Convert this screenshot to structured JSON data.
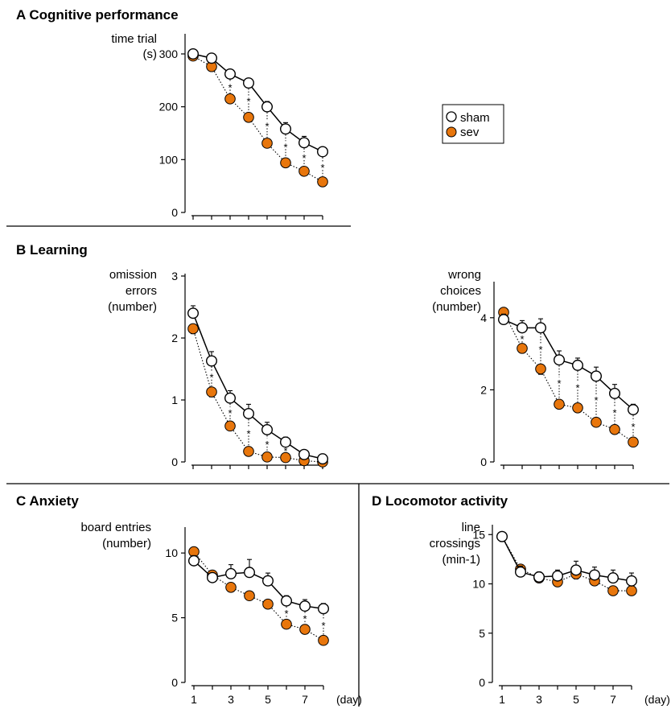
{
  "legend": {
    "sham": "sham",
    "sev": "sev"
  },
  "colors": {
    "sham_fill": "#ffffff",
    "sev_fill": "#e8760c",
    "line": "#000000"
  },
  "chart_data": [
    {
      "id": "A",
      "type": "line",
      "panel_title": "A Cognitive performance",
      "ylabel_lines": [
        "time trial",
        "(s)"
      ],
      "ylim": [
        0,
        300
      ],
      "yticks": [
        0,
        100,
        200,
        300
      ],
      "x": [
        1,
        2,
        3,
        4,
        5,
        6,
        7,
        8
      ],
      "xtick_labels": [],
      "xunit": "",
      "series": [
        {
          "name": "sham",
          "values": [
            300,
            292,
            262,
            245,
            200,
            158,
            132,
            115
          ],
          "errors": [
            3,
            4,
            5,
            8,
            10,
            12,
            12,
            8
          ]
        },
        {
          "name": "sev",
          "values": [
            296,
            276,
            215,
            180,
            131,
            94,
            78,
            58
          ],
          "errors": [
            3,
            4,
            5,
            5,
            5,
            5,
            5,
            4
          ]
        }
      ],
      "significant": [
        3,
        4,
        5,
        6,
        7,
        8
      ]
    },
    {
      "id": "B1",
      "type": "line",
      "panel_title": "B Learning",
      "ylabel_lines": [
        "omission",
        "errors",
        "(number)"
      ],
      "ylim": [
        0,
        3
      ],
      "yticks": [
        0,
        1,
        2,
        3
      ],
      "x": [
        1,
        2,
        3,
        4,
        5,
        6,
        7,
        8
      ],
      "xtick_labels": [],
      "xunit": "",
      "series": [
        {
          "name": "sham",
          "values": [
            2.4,
            1.63,
            1.03,
            0.78,
            0.52,
            0.32,
            0.12,
            0.05
          ],
          "errors": [
            0.12,
            0.15,
            0.12,
            0.15,
            0.12,
            0.08,
            0.05,
            0.03
          ]
        },
        {
          "name": "sev",
          "values": [
            2.15,
            1.13,
            0.58,
            0.17,
            0.08,
            0.07,
            0.02,
            0.0
          ],
          "errors": [
            0.08,
            0.08,
            0.06,
            0.04,
            0.03,
            0.03,
            0.02,
            0.01
          ]
        }
      ],
      "significant": [
        2,
        3,
        4,
        5,
        6
      ]
    },
    {
      "id": "B2",
      "type": "line",
      "panel_title": "",
      "ylabel_lines": [
        "wrong",
        "choices",
        "(number)"
      ],
      "ylim": [
        0,
        5
      ],
      "yticks": [
        0,
        2,
        4
      ],
      "x": [
        1,
        2,
        3,
        4,
        5,
        6,
        7,
        8
      ],
      "xtick_labels": [],
      "xunit": "",
      "series": [
        {
          "name": "sham",
          "values": [
            3.95,
            3.72,
            3.72,
            2.83,
            2.68,
            2.38,
            1.9,
            1.45
          ],
          "errors": [
            0.15,
            0.2,
            0.25,
            0.25,
            0.2,
            0.25,
            0.25,
            0.15
          ]
        },
        {
          "name": "sev",
          "values": [
            4.15,
            3.15,
            2.58,
            1.6,
            1.5,
            1.1,
            0.9,
            0.55
          ],
          "errors": [
            0.15,
            0.12,
            0.15,
            0.12,
            0.12,
            0.1,
            0.1,
            0.08
          ]
        }
      ],
      "significant": [
        2,
        3,
        4,
        5,
        6,
        7,
        8
      ]
    },
    {
      "id": "C",
      "type": "line",
      "panel_title": "C Anxiety",
      "ylabel_lines": [
        "board entries",
        "(number)"
      ],
      "ylim": [
        0,
        12
      ],
      "yticks": [
        0,
        5,
        10
      ],
      "x": [
        1,
        2,
        3,
        4,
        5,
        6,
        7,
        8
      ],
      "xtick_labels": [
        "1",
        "",
        "3",
        "",
        "5",
        "",
        "7",
        ""
      ],
      "xunit": "(day)",
      "series": [
        {
          "name": "sham",
          "values": [
            9.4,
            8.1,
            8.4,
            8.5,
            7.85,
            6.3,
            5.9,
            5.7
          ],
          "errors": [
            0.4,
            0.3,
            0.7,
            1.0,
            0.6,
            0.4,
            0.5,
            0.4
          ]
        },
        {
          "name": "sev",
          "values": [
            10.1,
            8.3,
            7.35,
            6.7,
            6.05,
            4.5,
            4.1,
            3.25
          ],
          "errors": [
            0.7,
            0.3,
            0.3,
            0.3,
            0.3,
            0.3,
            0.3,
            0.2
          ]
        }
      ],
      "significant": [
        6,
        7,
        8
      ]
    },
    {
      "id": "D",
      "type": "line",
      "panel_title": "D Locomotor activity",
      "ylabel_lines": [
        "line",
        "crossings",
        "(min-1)"
      ],
      "ylim": [
        0,
        16
      ],
      "yticks": [
        0,
        5,
        10,
        15
      ],
      "x": [
        1,
        2,
        3,
        4,
        5,
        6,
        7,
        8
      ],
      "xtick_labels": [
        "1",
        "",
        "3",
        "",
        "5",
        "",
        "7",
        ""
      ],
      "xunit": "(day)",
      "series": [
        {
          "name": "sham",
          "values": [
            14.8,
            11.2,
            10.7,
            10.8,
            11.4,
            10.9,
            10.6,
            10.3
          ],
          "errors": [
            0.4,
            0.6,
            0.5,
            0.6,
            0.9,
            0.8,
            0.8,
            0.8
          ]
        },
        {
          "name": "sev",
          "values": [
            14.8,
            11.5,
            10.6,
            10.2,
            11.0,
            10.3,
            9.3,
            9.3
          ],
          "errors": [
            0.5,
            0.6,
            0.4,
            0.4,
            0.5,
            0.4,
            0.4,
            0.4
          ]
        }
      ],
      "significant": []
    }
  ]
}
